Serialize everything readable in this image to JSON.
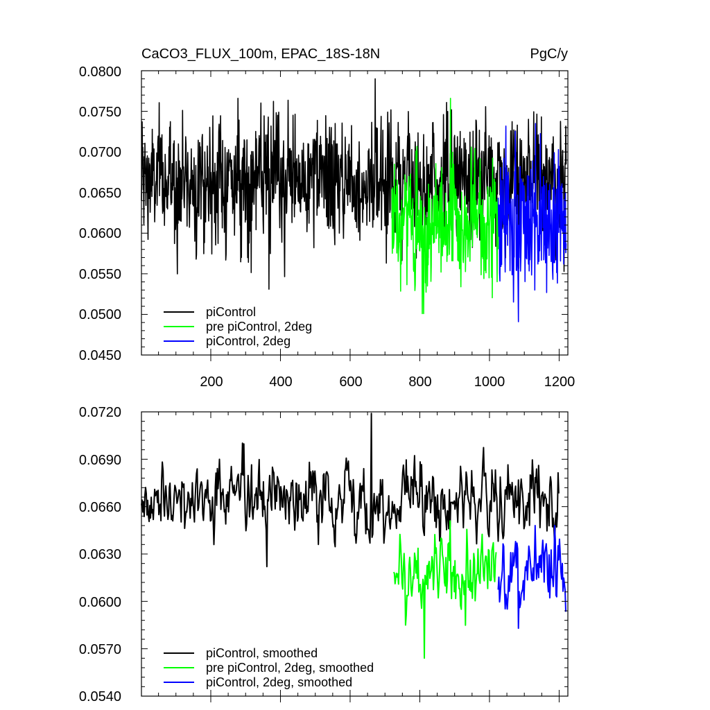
{
  "chart_data": [
    {
      "type": "line",
      "title": "CaCO3_FLUX_100m, EPAC_18S-18N",
      "units": "PgC/y",
      "xlim": [
        1,
        1225
      ],
      "ylim": [
        0.045,
        0.08
      ],
      "y_ticks": [
        "0.0450",
        "0.0500",
        "0.0550",
        "0.0600",
        "0.0650",
        "0.0700",
        "0.0750",
        "0.0800"
      ],
      "x_ticks": [
        "200",
        "400",
        "600",
        "800",
        "1000",
        "1200"
      ],
      "legend_position": "bottom-left",
      "legend": [
        "piControl",
        "pre piControl, 2deg",
        "piControl, 2deg"
      ],
      "series": [
        {
          "name": "piControl",
          "color": "#000000",
          "x_range": [
            1,
            1220
          ],
          "mean": 0.0665,
          "spread": 0.0038,
          "min": 0.0531,
          "max": 0.079
        },
        {
          "name": "pre piControl, 2deg",
          "color": "#00ff00",
          "x_range": [
            720,
            1025
          ],
          "mean": 0.061,
          "spread": 0.004,
          "min": 0.0501,
          "max": 0.0766
        },
        {
          "name": "piControl, 2deg",
          "color": "#0000ff",
          "x_range": [
            1025,
            1220
          ],
          "mean": 0.0617,
          "spread": 0.004,
          "min": 0.0491,
          "max": 0.0735
        }
      ]
    },
    {
      "type": "line",
      "xlim": [
        1,
        1225
      ],
      "ylim": [
        0.054,
        0.072
      ],
      "y_ticks": [
        "0.0540",
        "0.0570",
        "0.0600",
        "0.0630",
        "0.0660",
        "0.0690",
        "0.0720"
      ],
      "legend_position": "bottom-left",
      "legend": [
        "piControl, smoothed",
        "pre piControl, 2deg, smoothed",
        "piControl, 2deg, smoothed"
      ],
      "series": [
        {
          "name": "piControl, smoothed",
          "color": "#000000",
          "x_range": [
            1,
            1200
          ],
          "mean": 0.0665,
          "spread": 0.0012,
          "min": 0.0622,
          "max": 0.0719
        },
        {
          "name": "pre piControl, 2deg, smoothed",
          "color": "#00ff00",
          "x_range": [
            725,
            1020
          ],
          "mean": 0.0618,
          "spread": 0.0013,
          "min": 0.0564,
          "max": 0.0651
        },
        {
          "name": "piControl, 2deg, smoothed",
          "color": "#0000ff",
          "x_range": [
            1025,
            1220
          ],
          "mean": 0.0618,
          "spread": 0.0012,
          "min": 0.0583,
          "max": 0.0648
        }
      ]
    }
  ]
}
